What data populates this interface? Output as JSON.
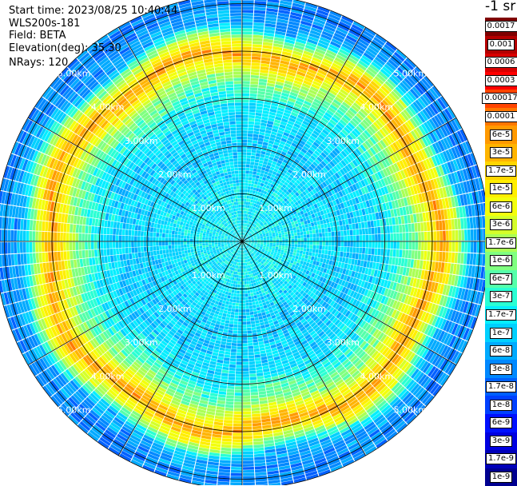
{
  "info": {
    "start_time": "Start time: 2023/08/25 10:40:44",
    "instrument": "WLS200s-181",
    "field": "Field: BETA",
    "elevation": "Elevation(deg): 35.30",
    "nrays": "NRays: 120"
  },
  "colorbar": {
    "unit": "-1 sr",
    "labels": [
      "0.0017",
      "0.001",
      "0.0006",
      "0.0003",
      "0.00017",
      "0.0001",
      "6e-5",
      "3e-5",
      "1.7e-5",
      "1e-5",
      "6e-6",
      "3e-6",
      "1.7e-6",
      "1e-6",
      "6e-7",
      "3e-7",
      "1.7e-7",
      "1e-7",
      "6e-8",
      "3e-8",
      "1.7e-8",
      "1e-8",
      "6e-9",
      "3e-9",
      "1.7e-9",
      "1e-9"
    ],
    "colors": [
      "#7f0000",
      "#b30000",
      "#d80000",
      "#ff0000",
      "#ff4400",
      "#ff7700",
      "#ff9900",
      "#ffb400",
      "#ffd500",
      "#ffee00",
      "#f2ff0c",
      "#d4ff2a",
      "#aaff55",
      "#80ff80",
      "#55ffaa",
      "#2affd4",
      "#05eeff",
      "#00d0ff",
      "#00aaff",
      "#0088ff",
      "#0060ff",
      "#0040ff",
      "#0010ff",
      "#0000e0",
      "#0000b8",
      "#000090"
    ]
  },
  "chart_data": {
    "type": "heatmap",
    "projection": "polar (PPI scan)",
    "field": "BETA",
    "rays": 120,
    "range_rings_km": [
      1,
      2,
      3,
      4,
      5
    ],
    "ring_labels": [
      "1.00km",
      "2.00km",
      "3.00km",
      "4.00km",
      "5.00km"
    ],
    "max_range_km": 5.2,
    "azimuth_lines_deg": [
      0,
      30,
      60,
      90,
      120,
      150,
      180,
      210,
      240,
      270,
      300,
      330
    ],
    "colorbar_scale": "log",
    "value_range": [
      1e-09,
      0.0017
    ],
    "radial_profile": {
      "range_km": [
        0.0,
        0.5,
        1.0,
        1.5,
        2.0,
        2.5,
        3.0,
        3.5,
        3.8,
        4.0,
        4.3,
        4.6,
        5.0,
        5.2
      ],
      "beta": [
        1.7e-07,
        1.7e-07,
        1.5e-07,
        1.2e-07,
        1e-07,
        1e-07,
        1.7e-07,
        1e-06,
        1e-05,
        5e-05,
        3e-06,
        6e-08,
        3e-08,
        3e-08
      ]
    }
  }
}
